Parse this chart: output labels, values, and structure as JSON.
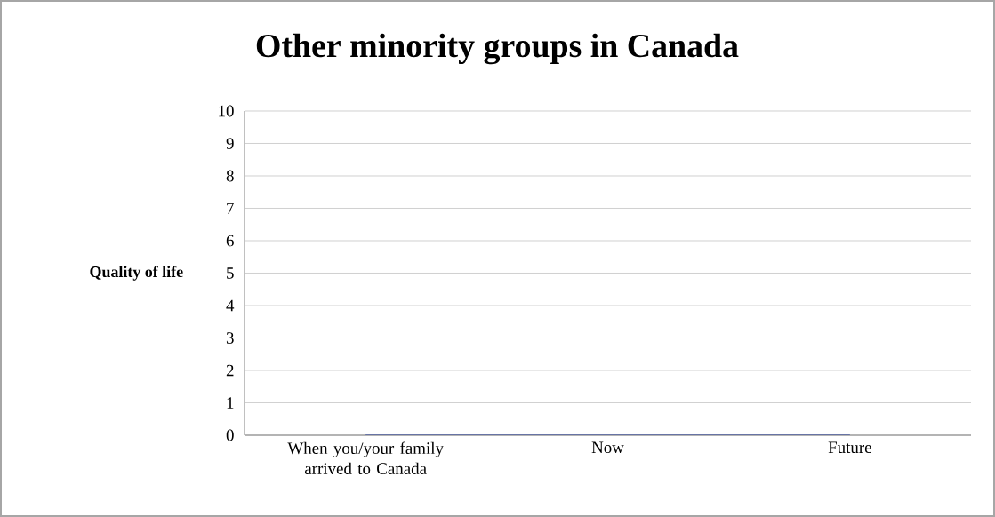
{
  "chart_data": {
    "type": "line",
    "title": "Other minority groups in Canada",
    "ylabel": "Quality of life",
    "categories": [
      "When you/your family arrived to Canada",
      "Now",
      "Future"
    ],
    "series": [
      {
        "color": "#4f5fa0",
        "values": [
          0,
          0,
          0
        ]
      }
    ],
    "ylim": [
      0,
      10
    ],
    "yticks": [
      0,
      1,
      2,
      3,
      4,
      5,
      6,
      7,
      8,
      9,
      10
    ],
    "grid": "y",
    "marker": "none",
    "line_style": "solid"
  }
}
